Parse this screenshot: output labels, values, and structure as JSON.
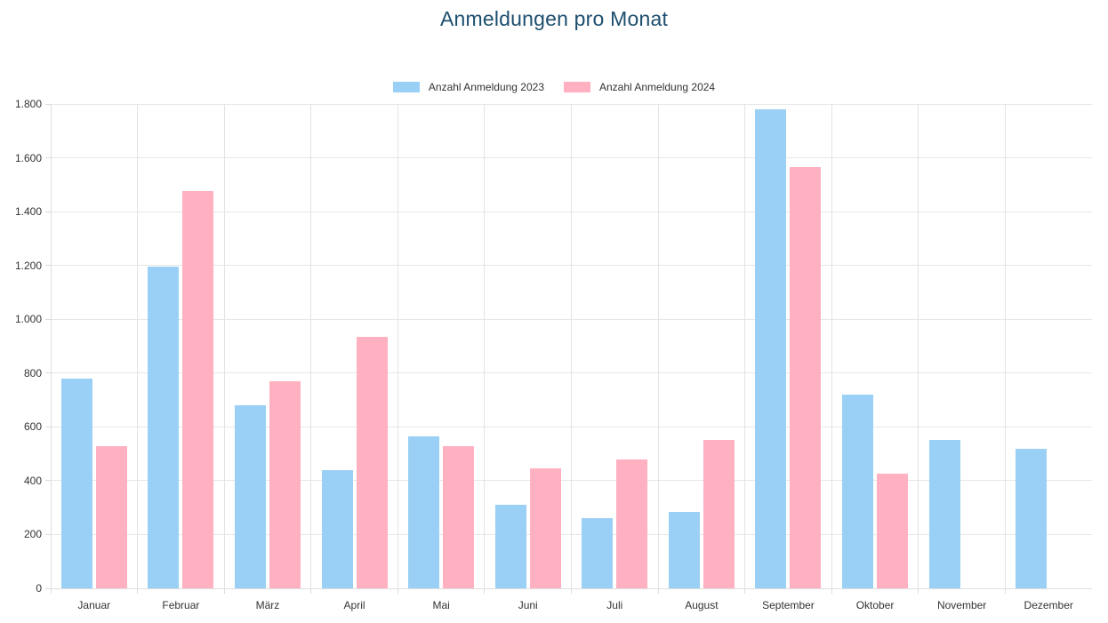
{
  "title": "Anmeldungen pro Monat",
  "colors": {
    "title_text": "#1d4e6e",
    "series_2023": "#9ad0f5",
    "series_2024": "#ffb1c1",
    "grid": "#e7e7e7",
    "axis_text": "#333333"
  },
  "legend": {
    "items": [
      {
        "label": "Anzahl Anmeldung 2023",
        "color": "#9ad0f5",
        "key": "2023"
      },
      {
        "label": "Anzahl Anmeldung 2024",
        "color": "#ffb1c1",
        "key": "2024"
      }
    ]
  },
  "chart_data": {
    "type": "bar",
    "title": "Anmeldungen pro Monat",
    "categories": [
      "Januar",
      "Februar",
      "März",
      "April",
      "Mai",
      "Juni",
      "Juli",
      "August",
      "September",
      "Oktober",
      "November",
      "Dezember"
    ],
    "series": [
      {
        "name": "Anzahl Anmeldung 2023",
        "color": "#9ad0f5",
        "values": [
          780,
          1195,
          680,
          440,
          565,
          310,
          260,
          285,
          1780,
          720,
          550,
          520
        ]
      },
      {
        "name": "Anzahl Anmeldung 2024",
        "color": "#ffb1c1",
        "values": [
          530,
          1475,
          770,
          935,
          530,
          445,
          480,
          550,
          1565,
          425,
          null,
          null
        ]
      }
    ],
    "ylim": [
      0,
      1800
    ],
    "y_tick_step": 200,
    "y_tick_labels": [
      "0",
      "200",
      "400",
      "600",
      "800",
      "1.000",
      "1.200",
      "1.400",
      "1.600",
      "1.800"
    ],
    "grid": true,
    "legend_position": "top"
  }
}
